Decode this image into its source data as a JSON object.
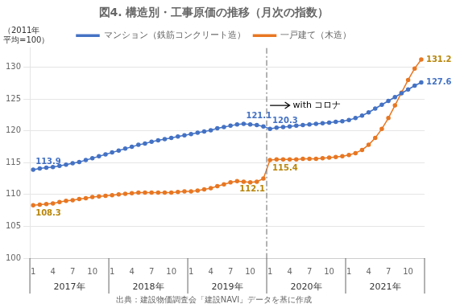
{
  "chart_data": {
    "type": "line",
    "title": "図4. 構造別・工事原価の推移（月次の指数）",
    "subtitle": "出典：建設物価調査会「建設NAVI」データを基に作成",
    "y_label": "（2011年\n平均=100）",
    "categories": [
      "1",
      null,
      null,
      "4",
      null,
      null,
      "7",
      null,
      null,
      "10",
      null,
      null,
      "1",
      null,
      null,
      "4",
      null,
      null,
      "7",
      null,
      null,
      "10",
      null,
      null,
      "1",
      null,
      null,
      "4",
      null,
      null,
      "7",
      null,
      null,
      "10",
      null,
      null,
      "1",
      null,
      null,
      "4",
      null,
      null,
      "7",
      null,
      null,
      "10",
      null,
      null,
      "1",
      null,
      null,
      "4",
      null,
      null,
      "7",
      null,
      null,
      "10",
      null,
      null
    ],
    "x_groups": [
      {
        "label": "2017年",
        "start": 0
      },
      {
        "label": "2018年",
        "start": 12
      },
      {
        "label": "2019年",
        "start": 24
      },
      {
        "label": "2020年",
        "start": 36
      },
      {
        "label": "2021年",
        "start": 48
      }
    ],
    "series": [
      {
        "name": "マンション（鉄筋コンクリート造）",
        "color": "#4472C4",
        "marker": "circle",
        "values": [
          113.9,
          114.1,
          114.2,
          114.3,
          114.5,
          114.7,
          114.9,
          115.1,
          115.4,
          115.7,
          116.0,
          116.3,
          116.6,
          116.9,
          117.2,
          117.5,
          117.8,
          118.0,
          118.3,
          118.5,
          118.7,
          118.9,
          119.1,
          119.3,
          119.5,
          119.7,
          119.9,
          120.1,
          120.4,
          120.6,
          120.8,
          121.0,
          121.1,
          121.0,
          120.9,
          120.7,
          120.3,
          120.5,
          120.6,
          120.7,
          120.8,
          120.9,
          121.0,
          121.1,
          121.2,
          121.3,
          121.4,
          121.5,
          121.7,
          122.0,
          122.4,
          122.9,
          123.5,
          124.1,
          124.7,
          125.3,
          125.9,
          126.5,
          127.1,
          127.6
        ]
      },
      {
        "name": "一戸建て（木造）",
        "color": "#E87722",
        "marker": "circle",
        "values": [
          108.3,
          108.4,
          108.5,
          108.6,
          108.8,
          109.0,
          109.1,
          109.3,
          109.4,
          109.6,
          109.7,
          109.8,
          109.9,
          110.0,
          110.1,
          110.2,
          110.3,
          110.3,
          110.3,
          110.3,
          110.3,
          110.3,
          110.4,
          110.5,
          110.5,
          110.6,
          110.8,
          111.0,
          111.3,
          111.6,
          111.9,
          112.1,
          112.0,
          111.9,
          112.0,
          112.5,
          115.4,
          115.5,
          115.5,
          115.5,
          115.5,
          115.6,
          115.6,
          115.6,
          115.7,
          115.8,
          115.9,
          116.0,
          116.2,
          116.5,
          117.0,
          117.8,
          118.9,
          120.3,
          122.0,
          124.0,
          126.0,
          128.0,
          129.8,
          131.2
        ]
      }
    ],
    "annotations": [
      {
        "text": "113.9",
        "x": 0,
        "y": 113.9,
        "color": "#4472C4"
      },
      {
        "text": "121.1",
        "x": 32,
        "y": 121.1,
        "color": "#4472C4"
      },
      {
        "text": "120.3",
        "x": 36,
        "y": 120.3,
        "color": "#4472C4"
      },
      {
        "text": "127.6",
        "x": 59,
        "y": 127.6,
        "color": "#4472C4"
      },
      {
        "text": "108.3",
        "x": 0,
        "y": 108.3,
        "color": "#B8860B"
      },
      {
        "text": "112.1",
        "x": 31,
        "y": 112.1,
        "color": "#B8860B"
      },
      {
        "text": "115.4",
        "x": 36,
        "y": 115.4,
        "color": "#B8860B"
      },
      {
        "text": "131.2",
        "x": 59,
        "y": 131.2,
        "color": "#B8860B"
      }
    ],
    "events": [
      {
        "text": "with コロナ",
        "x": 36,
        "y": 124
      }
    ],
    "ylim": [
      100,
      133
    ],
    "yticks": [
      100,
      105,
      110,
      115,
      120,
      125,
      130
    ],
    "grid": "y",
    "legend": "top"
  }
}
